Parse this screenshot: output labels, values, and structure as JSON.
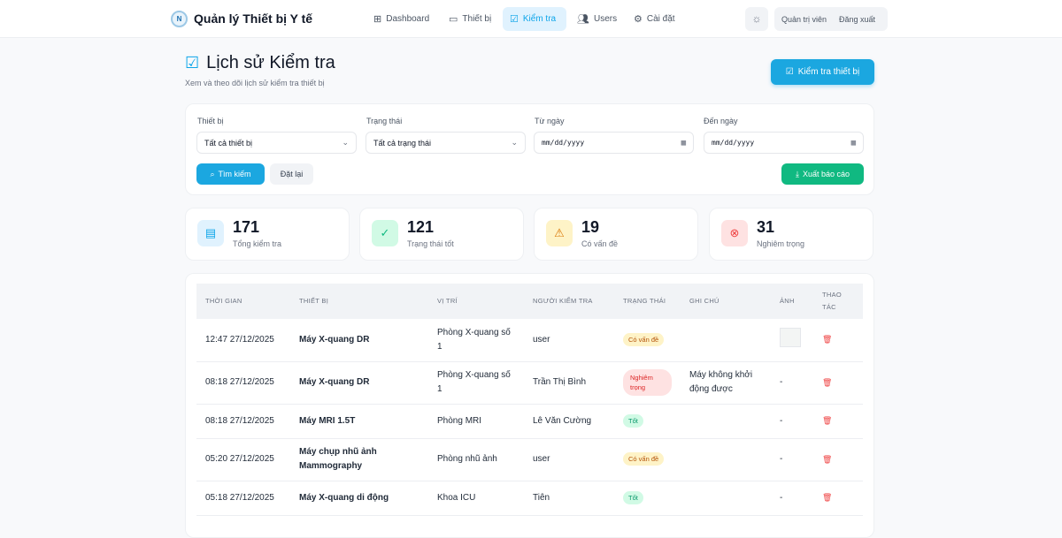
{
  "header": {
    "brand": "Quản lý Thiết bị Y tế",
    "logo_text": "N",
    "nav": [
      {
        "label": "Dashboard",
        "icon": "grid-icon"
      },
      {
        "label": "Thiết bị",
        "icon": "monitor-icon"
      },
      {
        "label": "Kiểm tra",
        "icon": "check-square-icon",
        "active": true
      },
      {
        "label": "Users",
        "icon": "users-icon"
      },
      {
        "label": "Cài đặt",
        "icon": "gear-icon"
      }
    ],
    "user": "Quản trị viên",
    "logout": "Đăng xuất"
  },
  "page": {
    "title": "Lịch sử Kiểm tra",
    "subtitle": "Xem và theo dõi lịch sử kiểm tra thiết bị",
    "new_button": "Kiểm tra thiết bị"
  },
  "filters": {
    "device_label": "Thiết bị",
    "device_value": "Tất cả thiết bị",
    "status_label": "Trạng thái",
    "status_value": "Tất cả trạng thái",
    "from_label": "Từ ngày",
    "from_placeholder": "mm/dd/yyyy",
    "to_label": "Đến ngày",
    "to_placeholder": "mm/dd/yyyy",
    "search": "Tìm kiếm",
    "reset": "Đặt lại",
    "export": "Xuất báo cáo"
  },
  "stats": [
    {
      "value": "171",
      "label": "Tổng kiểm tra",
      "color": "#0ea5e9"
    },
    {
      "value": "121",
      "label": "Trạng thái tốt",
      "color": "#10b981"
    },
    {
      "value": "19",
      "label": "Có vấn đề",
      "color": "#d97706"
    },
    {
      "value": "31",
      "label": "Nghiêm trọng",
      "color": "#ef4444"
    }
  ],
  "table": {
    "headers": [
      "THỜI GIAN",
      "THIẾT BỊ",
      "VỊ TRÍ",
      "NGƯỜI KIỂM TRA",
      "TRẠNG THÁI",
      "GHI CHÚ",
      "ẢNH",
      "THAO TÁC"
    ],
    "rows": [
      {
        "time": "12:47 27/12/2025",
        "device": "Máy X-quang DR",
        "location": "Phòng X-quang số 1",
        "checker": "user",
        "status": "Có vấn đề",
        "status_type": "warn",
        "note": "",
        "image": "thumbnail"
      },
      {
        "time": "08:18 27/12/2025",
        "device": "Máy X-quang DR",
        "location": "Phòng X-quang số 1",
        "checker": "Trần Thị Bình",
        "status": "Nghiêm trọng",
        "status_type": "crit",
        "note": "Máy không khởi động được",
        "image": "-"
      },
      {
        "time": "08:18 27/12/2025",
        "device": "Máy MRI 1.5T",
        "location": "Phòng MRI",
        "checker": "Lê Văn Cường",
        "status": "Tốt",
        "status_type": "ok",
        "note": "",
        "image": "-"
      },
      {
        "time": "05:20 27/12/2025",
        "device": "Máy chụp nhũ ảnh Mammography",
        "location": "Phòng nhũ ảnh",
        "checker": "user",
        "status": "Có vấn đề",
        "status_type": "warn",
        "note": "",
        "image": "-"
      },
      {
        "time": "05:18 27/12/2025",
        "device": "Máy X-quang di động",
        "location": "Khoa ICU",
        "checker": "Tiên",
        "status": "Tốt",
        "status_type": "ok",
        "note": "",
        "image": "-"
      }
    ]
  }
}
